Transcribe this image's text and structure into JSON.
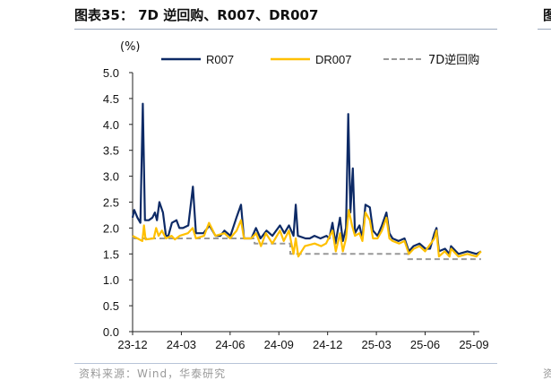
{
  "header": {
    "title": "图表35：  7D 逆回购、R007、DR007",
    "next_panel_title_fragment": "图"
  },
  "footer": {
    "source": "资料来源：Wind，华泰研究",
    "next_panel_source_fragment": "资"
  },
  "chart_data": {
    "type": "line",
    "title": "7D 逆回购、R007、DR007",
    "ylabel": "(%)",
    "xlabel": "",
    "ylim": [
      0,
      5
    ],
    "yticks": [
      "0.0",
      "0.5",
      "1.0",
      "1.5",
      "2.0",
      "2.5",
      "3.0",
      "3.5",
      "4.0",
      "4.5",
      "5.0"
    ],
    "xticks": [
      "23-12",
      "24-03",
      "24-06",
      "24-09",
      "24-12",
      "25-03",
      "25-06",
      "25-09"
    ],
    "x_unit": "months since 2023-12",
    "xlim": [
      0,
      21.6
    ],
    "legend_position": "top",
    "grid": false,
    "colors": {
      "R007": "#0d2a66",
      "DR007": "#ffc000",
      "7D逆回购": "#999999"
    },
    "series": [
      {
        "name": "R007",
        "style": "solid",
        "points": [
          [
            0,
            2.2
          ],
          [
            0.1,
            2.35
          ],
          [
            0.3,
            2.2
          ],
          [
            0.48,
            2.1
          ],
          [
            0.63,
            4.4
          ],
          [
            0.76,
            2.15
          ],
          [
            1.0,
            2.15
          ],
          [
            1.22,
            2.2
          ],
          [
            1.37,
            2.3
          ],
          [
            1.5,
            2.15
          ],
          [
            1.65,
            2.5
          ],
          [
            1.87,
            2.3
          ],
          [
            2.05,
            1.85
          ],
          [
            2.2,
            1.85
          ],
          [
            2.42,
            2.1
          ],
          [
            2.7,
            2.15
          ],
          [
            2.88,
            2.0
          ],
          [
            3.1,
            2.0
          ],
          [
            3.43,
            2.05
          ],
          [
            3.71,
            2.8
          ],
          [
            3.9,
            1.9
          ],
          [
            4.36,
            1.9
          ],
          [
            4.73,
            2.05
          ],
          [
            5.1,
            1.85
          ],
          [
            5.4,
            1.85
          ],
          [
            5.65,
            1.95
          ],
          [
            6.02,
            1.85
          ],
          [
            6.39,
            2.2
          ],
          [
            6.67,
            2.45
          ],
          [
            6.85,
            1.8
          ],
          [
            7.31,
            1.8
          ],
          [
            7.59,
            2.0
          ],
          [
            7.87,
            1.8
          ],
          [
            8.24,
            1.95
          ],
          [
            8.6,
            1.85
          ],
          [
            9.07,
            2.05
          ],
          [
            9.34,
            1.9
          ],
          [
            9.62,
            2.05
          ],
          [
            9.9,
            1.85
          ],
          [
            10.04,
            2.45
          ],
          [
            10.17,
            1.85
          ],
          [
            10.64,
            1.8
          ],
          [
            10.9,
            1.8
          ],
          [
            11.19,
            1.85
          ],
          [
            11.56,
            1.8
          ],
          [
            11.93,
            1.85
          ],
          [
            12.1,
            1.8
          ],
          [
            12.3,
            2.1
          ],
          [
            12.48,
            1.7
          ],
          [
            12.76,
            2.2
          ],
          [
            12.94,
            1.75
          ],
          [
            13.13,
            2.0
          ],
          [
            13.27,
            4.2
          ],
          [
            13.4,
            2.3
          ],
          [
            13.55,
            3.15
          ],
          [
            13.68,
            1.9
          ],
          [
            13.96,
            2.05
          ],
          [
            14.14,
            1.8
          ],
          [
            14.33,
            2.45
          ],
          [
            14.6,
            2.4
          ],
          [
            14.79,
            1.95
          ],
          [
            15.07,
            1.85
          ],
          [
            15.34,
            2.05
          ],
          [
            15.62,
            2.3
          ],
          [
            15.8,
            1.9
          ],
          [
            15.99,
            1.8
          ],
          [
            16.36,
            1.75
          ],
          [
            16.73,
            1.8
          ],
          [
            17.0,
            1.55
          ],
          [
            17.28,
            1.65
          ],
          [
            17.65,
            1.7
          ],
          [
            18.02,
            1.6
          ],
          [
            18.3,
            1.6
          ],
          [
            18.57,
            1.9
          ],
          [
            18.7,
            2.0
          ],
          [
            18.85,
            1.55
          ],
          [
            19.22,
            1.6
          ],
          [
            19.5,
            1.5
          ],
          [
            19.59,
            1.65
          ],
          [
            20.05,
            1.5
          ],
          [
            20.6,
            1.55
          ],
          [
            21.16,
            1.5
          ],
          [
            21.44,
            1.55
          ]
        ]
      },
      {
        "name": "DR007",
        "style": "solid",
        "points": [
          [
            0,
            1.85
          ],
          [
            0.3,
            1.8
          ],
          [
            0.6,
            1.75
          ],
          [
            0.7,
            2.05
          ],
          [
            0.8,
            1.78
          ],
          [
            1.3,
            1.8
          ],
          [
            1.45,
            2.0
          ],
          [
            1.6,
            1.85
          ],
          [
            1.8,
            1.95
          ],
          [
            2.05,
            1.8
          ],
          [
            2.4,
            1.85
          ],
          [
            2.6,
            1.78
          ],
          [
            2.9,
            1.85
          ],
          [
            3.4,
            1.9
          ],
          [
            3.7,
            2.0
          ],
          [
            3.9,
            1.8
          ],
          [
            4.4,
            1.85
          ],
          [
            4.7,
            2.1
          ],
          [
            5.1,
            1.85
          ],
          [
            5.65,
            1.9
          ],
          [
            6.0,
            1.8
          ],
          [
            6.4,
            1.95
          ],
          [
            6.67,
            2.15
          ],
          [
            6.85,
            1.8
          ],
          [
            7.3,
            1.8
          ],
          [
            7.6,
            1.9
          ],
          [
            7.9,
            1.65
          ],
          [
            8.2,
            1.9
          ],
          [
            8.6,
            1.7
          ],
          [
            9.07,
            1.95
          ],
          [
            9.3,
            1.75
          ],
          [
            9.62,
            1.95
          ],
          [
            9.9,
            1.5
          ],
          [
            10.04,
            1.8
          ],
          [
            10.2,
            1.45
          ],
          [
            10.6,
            1.65
          ],
          [
            11.2,
            1.7
          ],
          [
            11.6,
            1.65
          ],
          [
            11.9,
            1.7
          ],
          [
            12.3,
            1.95
          ],
          [
            12.5,
            1.55
          ],
          [
            12.76,
            1.9
          ],
          [
            12.94,
            1.55
          ],
          [
            13.13,
            1.8
          ],
          [
            13.3,
            2.35
          ],
          [
            13.5,
            2.05
          ],
          [
            13.68,
            1.85
          ],
          [
            13.96,
            1.9
          ],
          [
            14.14,
            1.75
          ],
          [
            14.33,
            2.3
          ],
          [
            14.6,
            2.15
          ],
          [
            14.79,
            1.8
          ],
          [
            15.07,
            1.8
          ],
          [
            15.34,
            1.95
          ],
          [
            15.62,
            2.2
          ],
          [
            15.8,
            1.8
          ],
          [
            16.0,
            1.75
          ],
          [
            16.4,
            1.7
          ],
          [
            16.73,
            1.75
          ],
          [
            17.0,
            1.5
          ],
          [
            17.3,
            1.6
          ],
          [
            17.65,
            1.65
          ],
          [
            18.0,
            1.55
          ],
          [
            18.57,
            1.8
          ],
          [
            18.7,
            1.95
          ],
          [
            18.85,
            1.45
          ],
          [
            19.2,
            1.55
          ],
          [
            19.5,
            1.45
          ],
          [
            19.6,
            1.6
          ],
          [
            20.05,
            1.45
          ],
          [
            20.6,
            1.5
          ],
          [
            21.16,
            1.45
          ],
          [
            21.44,
            1.55
          ]
        ]
      },
      {
        "name": "7D逆回购",
        "style": "dashed",
        "points": [
          [
            0,
            1.8
          ],
          [
            7.5,
            1.8
          ],
          [
            7.5,
            1.7
          ],
          [
            9.7,
            1.7
          ],
          [
            9.7,
            1.5
          ],
          [
            16.95,
            1.5
          ],
          [
            16.95,
            1.4
          ],
          [
            21.44,
            1.4
          ]
        ]
      }
    ]
  }
}
